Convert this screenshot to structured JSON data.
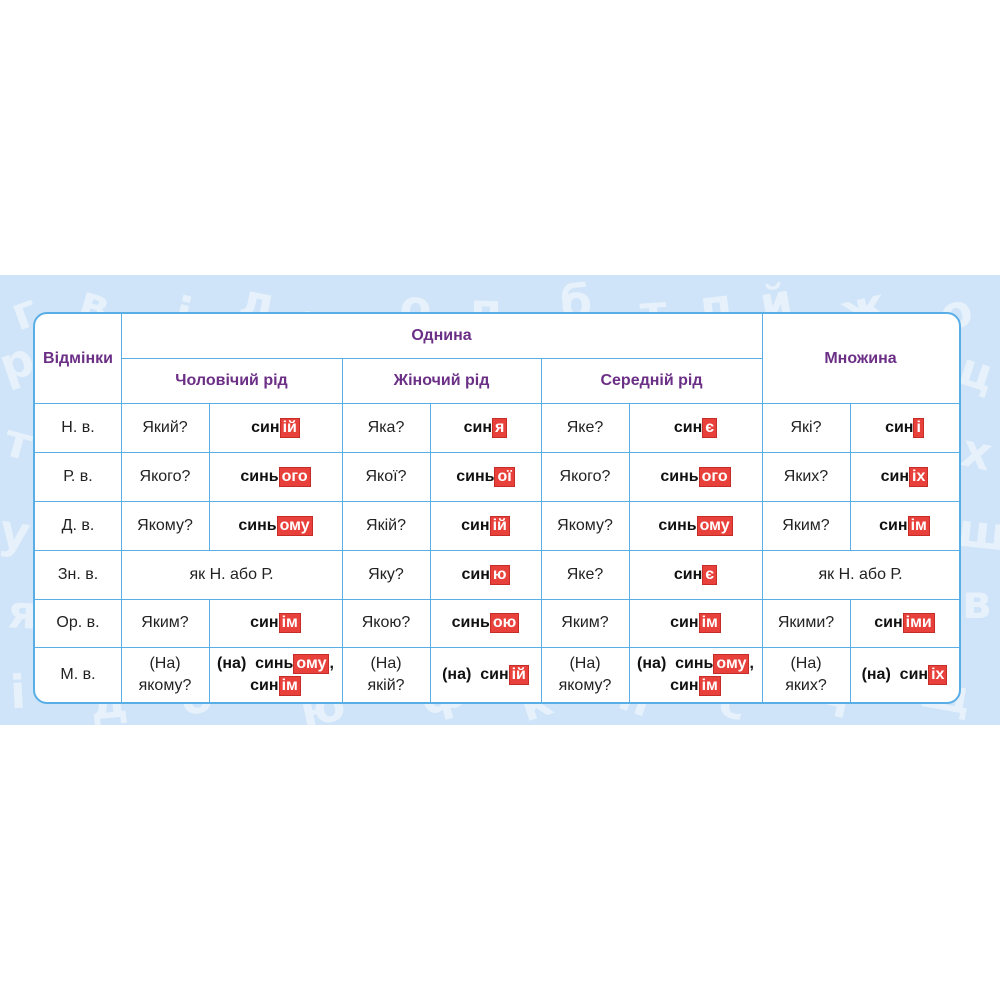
{
  "header": {
    "cases_label": "Відмінки",
    "singular_label": "Однина",
    "plural_label": "Множина",
    "genders": [
      "Чоловічий  рід",
      "Жіночий  рід",
      "Середній  рід"
    ]
  },
  "rows": [
    {
      "case": "Н.  в.",
      "m_q": "Який?",
      "m_stem": "син",
      "m_end": "ій",
      "f_q": "Яка?",
      "f_stem": "син",
      "f_end": "я",
      "n_q": "Яке?",
      "n_stem": "син",
      "n_end": "є",
      "p_q": "Які?",
      "p_stem": "син",
      "p_end": "і"
    },
    {
      "case": "Р.  в.",
      "m_q": "Якого?",
      "m_stem": "синь",
      "m_end": "ого",
      "f_q": "Якої?",
      "f_stem": "синь",
      "f_end": "ої",
      "n_q": "Якого?",
      "n_stem": "синь",
      "n_end": "ого",
      "p_q": "Яких?",
      "p_stem": "син",
      "p_end": "іх"
    },
    {
      "case": "Д.  в.",
      "m_q": "Якому?",
      "m_stem": "синь",
      "m_end": "ому",
      "f_q": "Якій?",
      "f_stem": "син",
      "f_end": "ій",
      "n_q": "Якому?",
      "n_stem": "синь",
      "n_end": "ому",
      "p_q": "Яким?",
      "p_stem": "син",
      "p_end": "ім"
    },
    {
      "case": "Зн.  в.",
      "m_merged": "як  Н.  або  Р.",
      "f_q": "Яку?",
      "f_stem": "син",
      "f_end": "ю",
      "n_q": "Яке?",
      "n_stem": "син",
      "n_end": "є",
      "p_merged": "як  Н.  або  Р."
    },
    {
      "case": "Ор.  в.",
      "m_q": "Яким?",
      "m_stem": "син",
      "m_end": "ім",
      "f_q": "Якою?",
      "f_stem": "синь",
      "f_end": "ою",
      "n_q": "Яким?",
      "n_stem": "син",
      "n_end": "ім",
      "p_q": "Якими?",
      "p_stem": "син",
      "p_end": "іми"
    },
    {
      "case": "М.  в.",
      "m_q1": "(На)",
      "m_q2": "якому?",
      "m_a_prefix": "(на)  ",
      "m_a_stem": "синь",
      "m_a_end": "ому",
      "m_a_comma": ",",
      "m_b_stem": "син",
      "m_b_end": "ім",
      "f_q1": "(На)",
      "f_q2": "якій?",
      "f_prefix": "(на)  ",
      "f_stem": "син",
      "f_end": "ій",
      "n_q1": "(На)",
      "n_q2": "якому?",
      "n_a_prefix": "(на)  ",
      "n_a_stem": "синь",
      "n_a_end": "ому",
      "n_a_comma": ",",
      "n_b_stem": "син",
      "n_b_end": "ім",
      "p_q1": "(На)",
      "p_q2": "яких?",
      "p_prefix": "(на)  ",
      "p_stem": "син",
      "p_end": "іх"
    }
  ],
  "background_letters": [
    "г",
    "в",
    "і",
    "л",
    "ц",
    "о",
    "п",
    "б",
    "т",
    "п",
    "й",
    "ж",
    "о",
    "р",
    "ц",
    "т",
    "х",
    "у",
    "ш",
    "я",
    "в",
    "і",
    "д",
    "б",
    "ю",
    "ф",
    "к",
    "н",
    "с",
    "ч",
    "щ"
  ],
  "colors": {
    "border": "#5aaee6",
    "header_text": "#6b2f86",
    "ending_bg": "#e8413b",
    "banner_bg": "#cfe4f8"
  }
}
